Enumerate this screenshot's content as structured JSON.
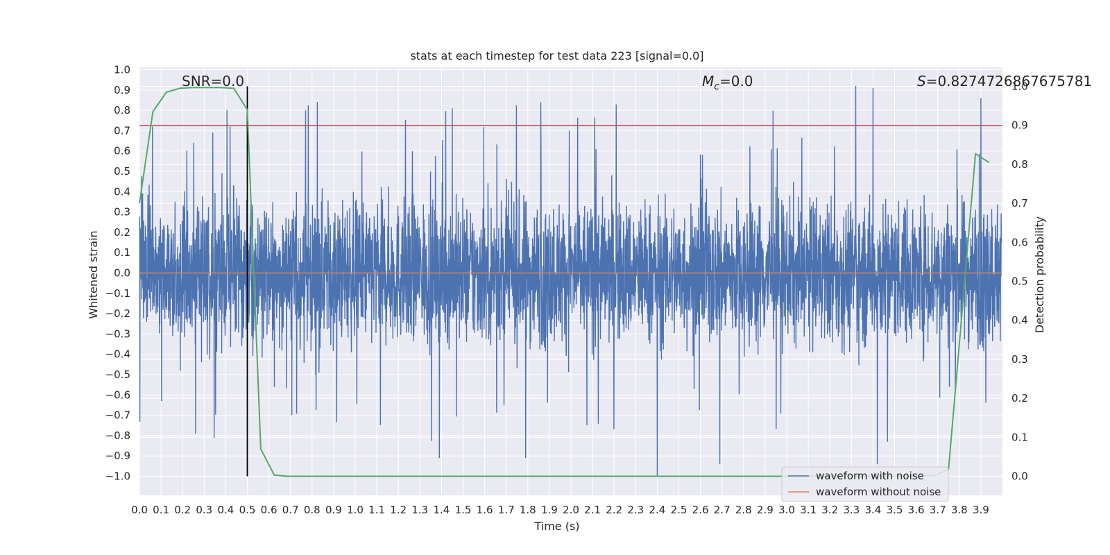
{
  "chart_data": {
    "type": "line",
    "title": "stats at each timestep for test data 223 [signal=0.0]",
    "xlabel": "Time (s)",
    "ylabel": "Whitened strain",
    "y2label": "Detection probability",
    "xlim": [
      0.0,
      3.996
    ],
    "ylim": [
      -1.09,
      1.0
    ],
    "y2lim": [
      -0.048,
      1.0
    ],
    "xticks": [
      "0.0",
      "0.1",
      "0.2",
      "0.3",
      "0.4",
      "0.5",
      "0.6",
      "0.7",
      "0.8",
      "0.9",
      "1.0",
      "1.1",
      "1.2",
      "1.3",
      "1.4",
      "1.5",
      "1.6",
      "1.7",
      "1.8",
      "1.9",
      "2.0",
      "2.1",
      "2.2",
      "2.3",
      "2.4",
      "2.5",
      "2.6",
      "2.7",
      "2.8",
      "2.9",
      "3.0",
      "3.1",
      "3.2",
      "3.3",
      "3.4",
      "3.5",
      "3.6",
      "3.7",
      "3.8",
      "3.9"
    ],
    "yticks": [
      "1.0",
      "0.9",
      "0.8",
      "0.7",
      "0.6",
      "0.5",
      "0.4",
      "0.3",
      "0.2",
      "0.1",
      "0.0",
      "−0.1",
      "−0.2",
      "−0.3",
      "−0.4",
      "−0.5",
      "−0.6",
      "−0.7",
      "−0.8",
      "−0.9",
      "−1.0"
    ],
    "y2ticks": [
      "1.0",
      "0.9",
      "0.8",
      "0.7",
      "0.6",
      "0.5",
      "0.4",
      "0.3",
      "0.2",
      "0.1",
      "0.0"
    ],
    "grid": true,
    "legend": {
      "placement": "lower-right",
      "entries": [
        {
          "label": "waveform with noise",
          "color": "#4c72b0"
        },
        {
          "label": "waveform without noise",
          "color": "#dd8452"
        }
      ]
    },
    "annotations": {
      "snr": "SNR=0.0",
      "mc_symbol": "M",
      "mc_subscript": "c",
      "mc_value": "=0.0",
      "s_symbol": "S",
      "s_value": "=0.8274726867675781"
    },
    "series": [
      {
        "name": "waveform with noise",
        "color": "#4c72b0",
        "axis": "left",
        "description": "dense whitened noisy strain, roughly uniform amplitude band about ±0.35 with spikes to ±0.9",
        "band": [
          -0.35,
          0.35
        ],
        "peak": [
          -1.0,
          0.92
        ],
        "peaks": [
          {
            "x": 0.06,
            "y": 0.72
          },
          {
            "x": 0.34,
            "y": 0.69
          },
          {
            "x": 0.42,
            "y": 0.72
          },
          {
            "x": 0.77,
            "y": 0.8
          },
          {
            "x": 1.45,
            "y": 0.81
          },
          {
            "x": 1.86,
            "y": 0.84
          },
          {
            "x": 3.32,
            "y": 0.92
          },
          {
            "x": 3.4,
            "y": 0.91
          },
          {
            "x": 3.9,
            "y": 0.86
          },
          {
            "x": 1.39,
            "y": -0.91
          },
          {
            "x": 1.79,
            "y": -0.91
          },
          {
            "x": 2.4,
            "y": -1.0
          },
          {
            "x": 2.69,
            "y": -0.94
          },
          {
            "x": 3.42,
            "y": -0.94
          },
          {
            "x": 0.26,
            "y": -0.79
          }
        ]
      },
      {
        "name": "waveform without noise",
        "color": "#dd8452",
        "axis": "left",
        "x": [
          0.0,
          3.996
        ],
        "y": [
          0.0,
          0.0
        ]
      },
      {
        "name": "detection probability",
        "color": "#55a868",
        "axis": "right",
        "x": [
          0.0,
          0.0625,
          0.125,
          0.1875,
          0.25,
          0.3125,
          0.375,
          0.4375,
          0.5,
          0.5625,
          0.625,
          0.6875,
          0.75,
          1.0,
          1.5,
          2.0,
          2.5,
          3.0,
          3.5,
          3.6875,
          3.75,
          3.8125,
          3.875,
          3.9375
        ],
        "y": [
          0.7,
          0.935,
          0.985,
          0.995,
          0.997,
          0.997,
          0.997,
          0.995,
          0.94,
          0.07,
          0.003,
          0.0,
          0.0,
          0.0,
          0.0,
          0.0,
          0.0,
          0.0,
          0.0,
          0.002,
          0.018,
          0.42,
          0.827,
          0.805
        ]
      }
    ],
    "threshold": {
      "axis": "right",
      "y": 0.9,
      "color": "#c44e52"
    },
    "marker": {
      "x": 0.5,
      "color": "#000000"
    }
  }
}
